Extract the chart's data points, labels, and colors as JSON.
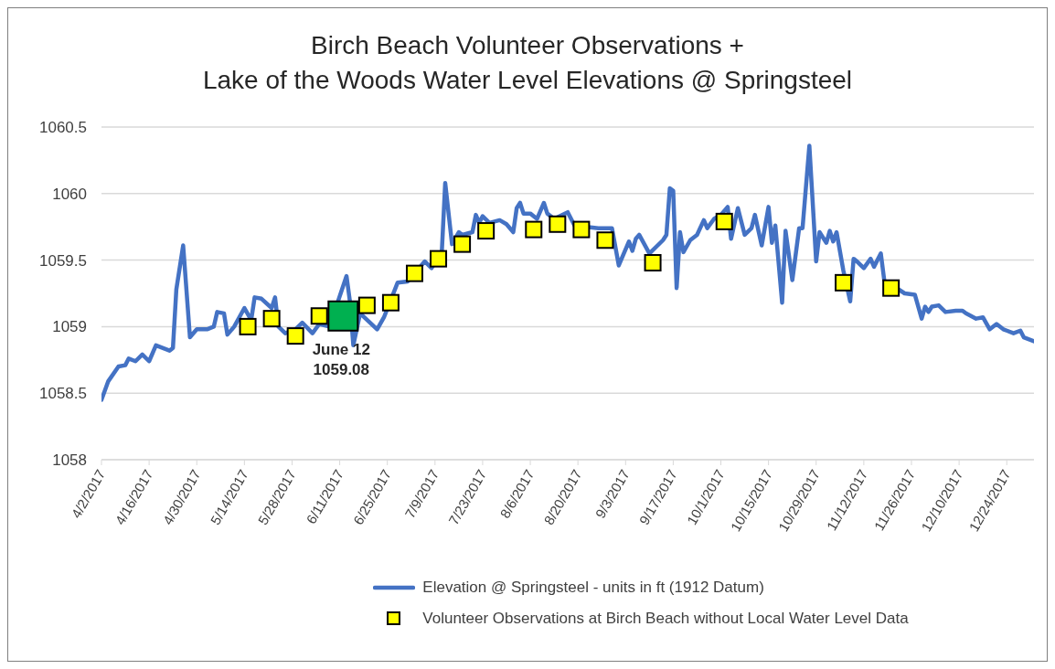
{
  "chart_data": {
    "type": "line",
    "title": "Birch Beach Volunteer Observations +\nLake of the Woods Water Level Elevations @ Springsteel",
    "xlim": [
      "2017-04-02",
      "2018-01-01"
    ],
    "xticks": [
      {
        "value": "2017-04-02",
        "label": "4/2/2017"
      },
      {
        "value": "2017-04-16",
        "label": "4/16/2017"
      },
      {
        "value": "2017-04-30",
        "label": "4/30/2017"
      },
      {
        "value": "2017-05-14",
        "label": "5/14/2017"
      },
      {
        "value": "2017-05-28",
        "label": "5/28/2017"
      },
      {
        "value": "2017-06-11",
        "label": "6/11/2017"
      },
      {
        "value": "2017-06-25",
        "label": "6/25/2017"
      },
      {
        "value": "2017-07-09",
        "label": "7/9/2017"
      },
      {
        "value": "2017-07-23",
        "label": "7/23/2017"
      },
      {
        "value": "2017-08-06",
        "label": "8/6/2017"
      },
      {
        "value": "2017-08-20",
        "label": "8/20/2017"
      },
      {
        "value": "2017-09-03",
        "label": "9/3/2017"
      },
      {
        "value": "2017-09-17",
        "label": "9/17/2017"
      },
      {
        "value": "2017-10-01",
        "label": "10/1/2017"
      },
      {
        "value": "2017-10-15",
        "label": "10/15/2017"
      },
      {
        "value": "2017-10-29",
        "label": "10/29/2017"
      },
      {
        "value": "2017-11-12",
        "label": "11/12/2017"
      },
      {
        "value": "2017-11-26",
        "label": "11/26/2017"
      },
      {
        "value": "2017-12-10",
        "label": "12/10/2017"
      },
      {
        "value": "2017-12-24",
        "label": "12/24/2017"
      }
    ],
    "ylim": [
      1058,
      1060.5
    ],
    "yticks": [
      1058,
      1058.5,
      1059,
      1059.5,
      1060,
      1060.5
    ],
    "grid": "y",
    "legend": "bottom",
    "line_style": "solid",
    "annotations": [
      {
        "text": "June 12\n1059.08",
        "x": "2017-06-12",
        "y": 1059.08
      }
    ],
    "series": [
      {
        "name": "Elevation @ Springsteel - units in ft (1912 Datum)",
        "color": "#4472c4",
        "x": [
          "2017-04-02",
          "2017-04-04",
          "2017-04-07",
          "2017-04-09",
          "2017-04-10",
          "2017-04-12",
          "2017-04-14",
          "2017-04-16",
          "2017-04-18",
          "2017-04-22",
          "2017-04-23",
          "2017-04-24",
          "2017-04-26",
          "2017-04-28",
          "2017-04-30",
          "2017-05-03",
          "2017-05-05",
          "2017-05-06",
          "2017-05-08",
          "2017-05-09",
          "2017-05-11",
          "2017-05-14",
          "2017-05-16",
          "2017-05-17",
          "2017-05-19",
          "2017-05-22",
          "2017-05-23",
          "2017-05-24",
          "2017-05-26",
          "2017-05-29",
          "2017-05-31",
          "2017-06-03",
          "2017-06-05",
          "2017-06-08",
          "2017-06-13",
          "2017-06-14",
          "2017-06-15",
          "2017-06-17",
          "2017-06-22",
          "2017-06-24",
          "2017-06-28",
          "2017-07-01",
          "2017-07-06",
          "2017-07-08",
          "2017-07-11",
          "2017-07-12",
          "2017-07-14",
          "2017-07-16",
          "2017-07-17",
          "2017-07-20",
          "2017-07-21",
          "2017-07-22",
          "2017-07-23",
          "2017-07-25",
          "2017-07-28",
          "2017-07-30",
          "2017-08-01",
          "2017-08-02",
          "2017-08-03",
          "2017-08-04",
          "2017-08-06",
          "2017-08-08",
          "2017-08-10",
          "2017-08-11",
          "2017-08-13",
          "2017-08-17",
          "2017-08-19",
          "2017-08-26",
          "2017-08-30",
          "2017-09-01",
          "2017-09-04",
          "2017-09-05",
          "2017-09-06",
          "2017-09-07",
          "2017-09-10",
          "2017-09-14",
          "2017-09-15",
          "2017-09-16",
          "2017-09-17",
          "2017-09-18",
          "2017-09-19",
          "2017-09-20",
          "2017-09-22",
          "2017-09-24",
          "2017-09-26",
          "2017-09-27",
          "2017-09-29",
          "2017-10-01",
          "2017-10-03",
          "2017-10-04",
          "2017-10-06",
          "2017-10-08",
          "2017-10-10",
          "2017-10-11",
          "2017-10-13",
          "2017-10-15",
          "2017-10-16",
          "2017-10-17",
          "2017-10-19",
          "2017-10-20",
          "2017-10-22",
          "2017-10-24",
          "2017-10-25",
          "2017-10-27",
          "2017-10-29",
          "2017-10-30",
          "2017-11-01",
          "2017-11-02",
          "2017-11-03",
          "2017-11-04",
          "2017-11-06",
          "2017-11-08",
          "2017-11-09",
          "2017-11-10",
          "2017-11-12",
          "2017-11-14",
          "2017-11-15",
          "2017-11-17",
          "2017-11-18",
          "2017-11-24",
          "2017-11-27",
          "2017-11-29",
          "2017-11-30",
          "2017-12-01",
          "2017-12-02",
          "2017-12-04",
          "2017-12-06",
          "2017-12-09",
          "2017-12-11",
          "2017-12-12",
          "2017-12-15",
          "2017-12-17",
          "2017-12-19",
          "2017-12-21",
          "2017-12-23",
          "2017-12-24",
          "2017-12-26",
          "2017-12-28",
          "2017-12-29",
          "2018-01-01"
        ],
        "values": [
          1058.45,
          1058.59,
          1058.7,
          1058.71,
          1058.76,
          1058.74,
          1058.79,
          1058.74,
          1058.86,
          1058.82,
          1058.84,
          1059.28,
          1059.61,
          1058.92,
          1058.98,
          1058.98,
          1059.0,
          1059.11,
          1059.1,
          1058.94,
          1059.0,
          1059.14,
          1059.05,
          1059.22,
          1059.21,
          1059.14,
          1059.22,
          1059.0,
          1058.95,
          1058.98,
          1059.03,
          1058.95,
          1059.02,
          1059.0,
          1059.38,
          1059.19,
          1058.86,
          1059.1,
          1058.98,
          1059.07,
          1059.33,
          1059.34,
          1059.49,
          1059.44,
          1059.56,
          1060.08,
          1059.62,
          1059.71,
          1059.69,
          1059.71,
          1059.84,
          1059.78,
          1059.83,
          1059.78,
          1059.8,
          1059.77,
          1059.71,
          1059.89,
          1059.93,
          1059.85,
          1059.85,
          1059.81,
          1059.93,
          1059.85,
          1059.81,
          1059.86,
          1059.76,
          1059.74,
          1059.74,
          1059.46,
          1059.64,
          1059.57,
          1059.66,
          1059.69,
          1059.55,
          1059.65,
          1059.69,
          1060.04,
          1060.02,
          1059.29,
          1059.71,
          1059.56,
          1059.65,
          1059.69,
          1059.8,
          1059.74,
          1059.81,
          1059.84,
          1059.9,
          1059.66,
          1059.89,
          1059.69,
          1059.74,
          1059.84,
          1059.61,
          1059.9,
          1059.63,
          1059.76,
          1059.18,
          1059.72,
          1059.35,
          1059.74,
          1059.74,
          1060.36,
          1059.49,
          1059.71,
          1059.63,
          1059.72,
          1059.64,
          1059.71,
          1059.42,
          1059.19,
          1059.51,
          1059.49,
          1059.44,
          1059.51,
          1059.45,
          1059.55,
          1059.35,
          1059.25,
          1059.24,
          1059.06,
          1059.15,
          1059.11,
          1059.15,
          1059.16,
          1059.11,
          1059.12,
          1059.12,
          1059.1,
          1059.06,
          1059.07,
          1058.98,
          1059.02,
          1058.98,
          1058.97,
          1058.95,
          1058.97,
          1058.92,
          1058.89
        ]
      },
      {
        "name": "Volunteer Observations at Birch Beach without Local Water Level Data",
        "type": "scatter",
        "marker": "square",
        "color": "#ffff00",
        "x": [
          "2017-05-15",
          "2017-05-22",
          "2017-05-29",
          "2017-06-05",
          "2017-06-19",
          "2017-06-26",
          "2017-07-03",
          "2017-07-10",
          "2017-07-17",
          "2017-07-24",
          "2017-08-07",
          "2017-08-14",
          "2017-08-21",
          "2017-08-28",
          "2017-09-11",
          "2017-10-02",
          "2017-11-06",
          "2017-11-20"
        ],
        "values": [
          1059.0,
          1059.06,
          1058.93,
          1059.08,
          1059.16,
          1059.18,
          1059.4,
          1059.51,
          1059.62,
          1059.72,
          1059.73,
          1059.77,
          1059.73,
          1059.65,
          1059.48,
          1059.79,
          1059.33,
          1059.29
        ]
      },
      {
        "type": "scatter",
        "marker": "square",
        "color": "#00b050",
        "x": [
          "2017-06-12"
        ],
        "values": [
          1059.08
        ]
      }
    ]
  }
}
